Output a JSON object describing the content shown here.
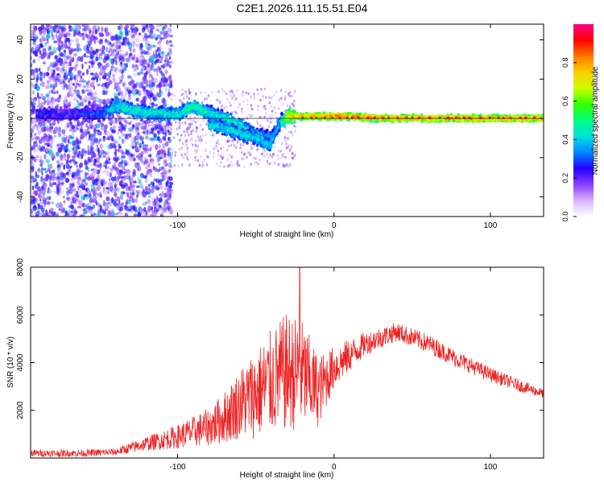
{
  "figure": {
    "title": "C2E1.2026.111.15.51.E04"
  },
  "chart_data": [
    {
      "type": "heatmap",
      "title": "C2E1.2026.111.15.51.E04",
      "xlabel": "Height of straight line (km)",
      "ylabel": "Frequency (Hz)",
      "xlim": [
        -194,
        134
      ],
      "ylim": [
        -50,
        48
      ],
      "xticks": [
        -100,
        0,
        100
      ],
      "yticks": [
        -40,
        -20,
        0,
        20,
        40
      ],
      "colorbar": {
        "label": "Normalized spectral amplitude",
        "range": [
          0,
          1
        ],
        "ticks": [
          "0.0",
          "0.2",
          "0.4",
          "0.6",
          "0.8"
        ],
        "colors": [
          "#ffffff",
          "#d9b3ff",
          "#8b3cff",
          "#2200ff",
          "#0088ff",
          "#00e0e0",
          "#00ff80",
          "#33ff00",
          "#ccff00",
          "#ffcc00",
          "#ff7700",
          "#ff0000",
          "#ff0088"
        ]
      },
      "trace": {
        "x": [
          -190,
          -170,
          -150,
          -140,
          -120,
          -100,
          -90,
          -80,
          -70,
          -60,
          -50,
          -40,
          -35,
          -30,
          -25,
          -20,
          -10,
          0,
          10,
          30,
          60,
          100,
          134
        ],
        "freq": [
          2,
          2,
          2,
          6,
          3,
          2,
          6,
          3,
          0,
          -4,
          -8,
          -10,
          -3,
          1,
          1,
          1,
          1,
          1,
          1,
          0,
          0,
          0,
          0
        ],
        "amplitude": [
          0.25,
          0.25,
          0.3,
          0.45,
          0.45,
          0.45,
          0.5,
          0.45,
          0.45,
          0.45,
          0.4,
          0.4,
          0.4,
          0.7,
          0.75,
          0.75,
          0.8,
          0.85,
          0.85,
          0.8,
          0.8,
          0.8,
          0.8
        ]
      },
      "branch": {
        "x": [
          -80,
          -70,
          -60,
          -50,
          -45,
          -40
        ],
        "freq": [
          -3,
          -5,
          -8,
          -10,
          -12,
          -14
        ]
      }
    },
    {
      "type": "line",
      "xlabel": "Height of straight line (km)",
      "ylabel": "SNR (10 * v/v)",
      "xlim": [
        -194,
        134
      ],
      "ylim": [
        0,
        8000
      ],
      "xticks": [
        -100,
        0,
        100
      ],
      "yticks": [
        2000,
        4000,
        6000,
        8000
      ],
      "color": "#ee2222",
      "envelope": {
        "x": [
          -194,
          -160,
          -140,
          -120,
          -100,
          -80,
          -70,
          -60,
          -50,
          -40,
          -30,
          -20,
          -10,
          0,
          20,
          40,
          60,
          80,
          100,
          120,
          134
        ],
        "mean": [
          200,
          200,
          250,
          600,
          900,
          1300,
          1700,
          2300,
          2700,
          3200,
          3600,
          3500,
          2800,
          3800,
          4800,
          5300,
          4800,
          4100,
          3500,
          3000,
          2700
        ],
        "spread": [
          150,
          150,
          150,
          300,
          500,
          800,
          1100,
          1500,
          1900,
          2200,
          2500,
          2300,
          1500,
          900,
          500,
          400,
          400,
          350,
          300,
          250,
          200
        ]
      },
      "peak": {
        "x": -22,
        "y": 8000
      }
    }
  ]
}
